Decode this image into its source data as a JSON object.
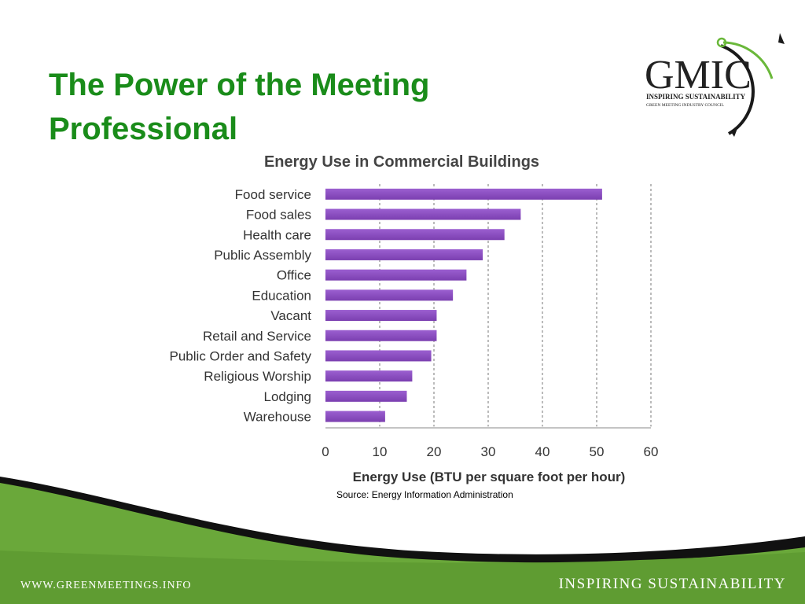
{
  "slide": {
    "title": "The Power of the Meeting Professional"
  },
  "logo": {
    "name": "GMIC",
    "tagline": "INSPIRING SUSTAINABILITY",
    "subtitle": "GREEN MEETING INDUSTRY COUNCIL"
  },
  "chart_data": {
    "type": "bar",
    "orientation": "horizontal",
    "title": "Energy Use in Commercial Buildings",
    "xlabel": "Energy Use (BTU per square foot per hour)",
    "ylabel": "",
    "categories": [
      "Food service",
      "Food sales",
      "Health care",
      "Public Assembly",
      "Office",
      "Education",
      "Vacant",
      "Retail and Service",
      "Public Order and Safety",
      "Religious Worship",
      "Lodging",
      "Warehouse"
    ],
    "values": [
      51,
      36,
      33,
      29,
      26,
      23.5,
      20.5,
      20.5,
      19.5,
      16,
      15,
      11
    ],
    "xlim": [
      0,
      60
    ],
    "xticks": [
      "0",
      "10",
      "20",
      "30",
      "40",
      "50",
      "60"
    ],
    "grid": "vertical dashed",
    "bar_color": "#7b3fb0",
    "legend": "none"
  },
  "source_note": "Source: Energy Information Administration",
  "footer": {
    "website": "WWW.GREENMEETINGS.INFO",
    "slogan": "INSPIRING SUSTAINABILITY"
  },
  "colors": {
    "title_green": "#1a8c1a",
    "footer_green": "#6aa83a"
  }
}
